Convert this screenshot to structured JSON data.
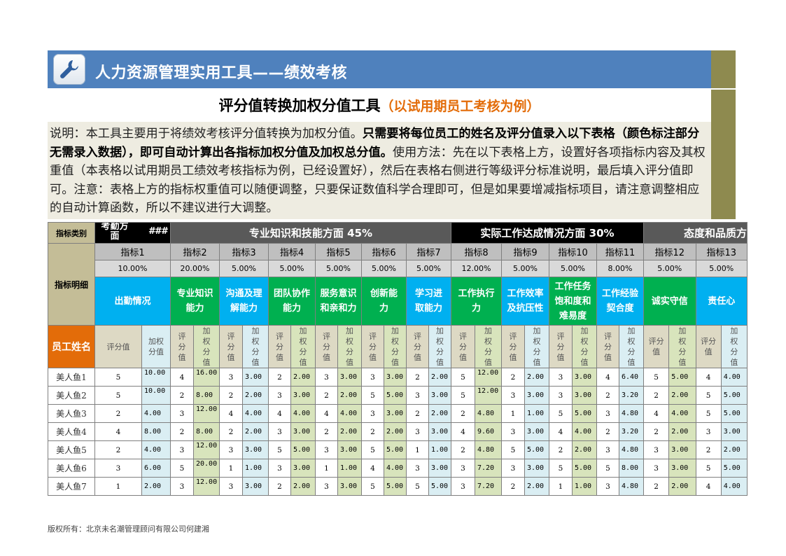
{
  "app_title": "人力资源管理实用工具——绩效考核",
  "subtitle": "评分值转换加权分值工具",
  "subtitle_note": "（以试用期员工考核为例）",
  "description": {
    "part1": "说明：本工具主要用于将绩效考核评分值转换为加权分值。",
    "part2_bold": "只需要将每位员工的姓名及评分值录入以下表格（颜色标注部分无需录入数据），即可自动计算出各指标加权分值及加权总分值。",
    "part3": "使用方法：先在以下表格上方，设置好各项指标内容及其权重值（本表格以试用期员工绩效考核指标为例，已经设置好），然后在表格右侧进行等级评分标准说明，最后填入评分值即可。注意：表格上方的指标权重值可以随便调整，只要保证数值科学合理即可，但是如果要增减指标项目，请注意调整相应的自动计算函数，所以不建议进行大调整。"
  },
  "table": {
    "category_label": "指标类别",
    "categories": {
      "attendance": "考勤方面",
      "attendance_overflow": "###",
      "professional": "专业知识和技能方面 45%",
      "actual": "实际工作达成情况方面 30%",
      "attitude": "态度和品质方"
    },
    "detail_label": "指标明细",
    "employee_label": "员工姓名",
    "score_sub_label": "评分值",
    "score_sub_label_short": "评分值",
    "weighted_sub_label": "加权分值",
    "indicators": [
      {
        "code": "指标1",
        "weight": "10.00%",
        "name": "出勤情况",
        "color": "blue"
      },
      {
        "code": "指标2",
        "weight": "20.00%",
        "name": "专业知识能力",
        "color": "green"
      },
      {
        "code": "指标3",
        "weight": "5.00%",
        "name": "沟通及理解能力",
        "color": "blue"
      },
      {
        "code": "指标4",
        "weight": "5.00%",
        "name": "团队协作能力",
        "color": "green"
      },
      {
        "code": "指标5",
        "weight": "5.00%",
        "name": "服务意识和亲和力",
        "color": "green"
      },
      {
        "code": "指标6",
        "weight": "5.00%",
        "name": "创新能力",
        "color": "green"
      },
      {
        "code": "指标7",
        "weight": "5.00%",
        "name": "学习进取能力",
        "color": "blue"
      },
      {
        "code": "指标8",
        "weight": "12.00%",
        "name": "工作执行力",
        "color": "green"
      },
      {
        "code": "指标9",
        "weight": "5.00%",
        "name": "工作效率及抗压性",
        "color": "blue"
      },
      {
        "code": "指标10",
        "weight": "5.00%",
        "name": "工作任务饱和度和难易度",
        "color": "green"
      },
      {
        "code": "指标11",
        "weight": "8.00%",
        "name": "工作经验契合度",
        "color": "blue"
      },
      {
        "code": "指标12",
        "weight": "5.00%",
        "name": "诚实守信",
        "color": "green"
      },
      {
        "code": "指标13",
        "weight": "5.00%",
        "name": "责任心",
        "color": "blue"
      }
    ],
    "rows": [
      {
        "name": "美人鱼1",
        "cells": [
          [
            "5",
            "10.00"
          ],
          [
            "4",
            "16.00"
          ],
          [
            "3",
            "3.00"
          ],
          [
            "2",
            "2.00"
          ],
          [
            "3",
            "3.00"
          ],
          [
            "3",
            "3.00"
          ],
          [
            "2",
            "2.00"
          ],
          [
            "5",
            "12.00"
          ],
          [
            "2",
            "2.00"
          ],
          [
            "3",
            "3.00"
          ],
          [
            "4",
            "6.40"
          ],
          [
            "5",
            "5.00"
          ],
          [
            "4",
            "4.00"
          ]
        ]
      },
      {
        "name": "美人鱼2",
        "cells": [
          [
            "5",
            "10.00"
          ],
          [
            "2",
            "8.00"
          ],
          [
            "2",
            "2.00"
          ],
          [
            "3",
            "3.00"
          ],
          [
            "2",
            "2.00"
          ],
          [
            "5",
            "5.00"
          ],
          [
            "3",
            "3.00"
          ],
          [
            "5",
            "12.00"
          ],
          [
            "3",
            "3.00"
          ],
          [
            "3",
            "3.00"
          ],
          [
            "2",
            "3.20"
          ],
          [
            "2",
            "2.00"
          ],
          [
            "5",
            "5.00"
          ]
        ]
      },
      {
        "name": "美人鱼3",
        "cells": [
          [
            "2",
            "4.00"
          ],
          [
            "3",
            "12.00"
          ],
          [
            "4",
            "4.00"
          ],
          [
            "4",
            "4.00"
          ],
          [
            "4",
            "4.00"
          ],
          [
            "3",
            "3.00"
          ],
          [
            "2",
            "2.00"
          ],
          [
            "2",
            "4.80"
          ],
          [
            "1",
            "1.00"
          ],
          [
            "5",
            "5.00"
          ],
          [
            "3",
            "4.80"
          ],
          [
            "4",
            "4.00"
          ],
          [
            "5",
            "5.00"
          ]
        ]
      },
      {
        "name": "美人鱼4",
        "cells": [
          [
            "4",
            "8.00"
          ],
          [
            "2",
            "8.00"
          ],
          [
            "2",
            "2.00"
          ],
          [
            "3",
            "3.00"
          ],
          [
            "2",
            "2.00"
          ],
          [
            "2",
            "2.00"
          ],
          [
            "3",
            "3.00"
          ],
          [
            "4",
            "9.60"
          ],
          [
            "3",
            "3.00"
          ],
          [
            "4",
            "4.00"
          ],
          [
            "2",
            "3.20"
          ],
          [
            "2",
            "2.00"
          ],
          [
            "3",
            "3.00"
          ]
        ]
      },
      {
        "name": "美人鱼5",
        "cells": [
          [
            "2",
            "4.00"
          ],
          [
            "3",
            "12.00"
          ],
          [
            "3",
            "3.00"
          ],
          [
            "5",
            "5.00"
          ],
          [
            "3",
            "3.00"
          ],
          [
            "5",
            "5.00"
          ],
          [
            "1",
            "1.00"
          ],
          [
            "2",
            "4.80"
          ],
          [
            "5",
            "5.00"
          ],
          [
            "2",
            "2.00"
          ],
          [
            "3",
            "4.80"
          ],
          [
            "3",
            "3.00"
          ],
          [
            "2",
            "2.00"
          ]
        ]
      },
      {
        "name": "美人鱼6",
        "cells": [
          [
            "3",
            "6.00"
          ],
          [
            "5",
            "20.00"
          ],
          [
            "1",
            "1.00"
          ],
          [
            "3",
            "3.00"
          ],
          [
            "1",
            "1.00"
          ],
          [
            "4",
            "4.00"
          ],
          [
            "3",
            "3.00"
          ],
          [
            "3",
            "7.20"
          ],
          [
            "3",
            "3.00"
          ],
          [
            "5",
            "5.00"
          ],
          [
            "5",
            "8.00"
          ],
          [
            "3",
            "3.00"
          ],
          [
            "5",
            "5.00"
          ]
        ]
      },
      {
        "name": "美人鱼7",
        "cells": [
          [
            "1",
            "2.00"
          ],
          [
            "3",
            "12.00"
          ],
          [
            "3",
            "3.00"
          ],
          [
            "2",
            "2.00"
          ],
          [
            "3",
            "3.00"
          ],
          [
            "5",
            "5.00"
          ],
          [
            "5",
            "5.00"
          ],
          [
            "3",
            "7.20"
          ],
          [
            "2",
            "2.00"
          ],
          [
            "1",
            "1.00"
          ],
          [
            "3",
            "4.80"
          ],
          [
            "2",
            "2.00"
          ],
          [
            "4",
            "4.00"
          ]
        ]
      }
    ]
  },
  "footer": "版权所有：北京未名潮管理顾问有限公司何建湘",
  "colors": {
    "header_band": "#4f81bd",
    "note_orange": "#e36c09",
    "indicator_blue": "#00b0f0",
    "indicator_green": "#00b050"
  },
  "icons": {
    "app": "wrench-icon"
  }
}
